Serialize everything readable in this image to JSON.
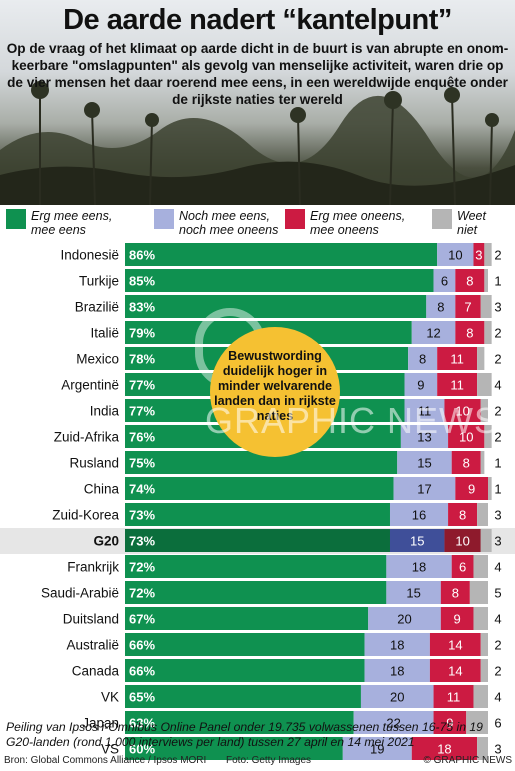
{
  "header": {
    "title": "De aarde nadert “kantelpunt”",
    "subtitle": "Op de vraag of het klimaat op aarde dicht in de buurt is van abrupte en onom-keerbare \"omslagpunten\" als gevolg van menselijke activiteit, waren drie op de vier mensen het daar roerend mee eens, in een wereldwijde enquête onder de rijkste naties ter wereld"
  },
  "colors": {
    "agree": "#0f9150",
    "agree_g20": "#0b6e3c",
    "neither": "#a7b0dd",
    "neither_g20": "#3f4f99",
    "disagree": "#cc1b42",
    "disagree_g20": "#8e1a2c",
    "dontknow": "#b5b5b5"
  },
  "legend": [
    {
      "label": "Erg mee eens,\nmee eens",
      "color": "#0f9150"
    },
    {
      "label": "Noch mee eens,\nnoch mee oneens",
      "color": "#a7b0dd"
    },
    {
      "label": "Erg mee oneens,\nmee oneens",
      "color": "#cc1b42"
    },
    {
      "label": "Weet\nniet",
      "color": "#b5b5b5"
    }
  ],
  "callout": {
    "text": "Bewustwording duidelijk hoger in minder welvarende landen dan in rijkste naties"
  },
  "watermark": "GRAPHIC NEWS",
  "chart_data": {
    "type": "bar",
    "stacked": true,
    "orientation": "horizontal",
    "categories": [
      "Indonesië",
      "Turkije",
      "Brazilië",
      "Italië",
      "Mexico",
      "Argentinë",
      "India",
      "Zuid-Afrika",
      "Rusland",
      "China",
      "Zuid-Korea",
      "G20",
      "Frankrijk",
      "Saudi-Arabië",
      "Duitsland",
      "Australië",
      "Canada",
      "VK",
      "Japan",
      "VS"
    ],
    "highlight": "G20",
    "series": [
      {
        "name": "Erg mee eens, mee eens",
        "values": [
          86,
          85,
          83,
          79,
          78,
          77,
          77,
          76,
          75,
          74,
          73,
          73,
          72,
          72,
          67,
          66,
          66,
          65,
          63,
          60
        ],
        "labels": [
          "86%",
          "85%",
          "83%",
          "79%",
          "78%",
          "77%",
          "77%",
          "76%",
          "75%",
          "74%",
          "73%",
          "73%",
          "72%",
          "72%",
          "67%",
          "66%",
          "66%",
          "65%",
          "63%",
          "60%"
        ]
      },
      {
        "name": "Noch mee eens, noch mee oneens",
        "values": [
          10,
          6,
          8,
          12,
          8,
          9,
          11,
          13,
          15,
          17,
          16,
          15,
          18,
          15,
          20,
          18,
          18,
          20,
          22,
          19
        ],
        "labels": [
          "10",
          "6",
          "8",
          "12",
          "8",
          "9",
          "11",
          "13",
          "15",
          "17",
          "16",
          "15",
          "18",
          "15",
          "20",
          "18",
          "18",
          "20",
          "22",
          "19"
        ]
      },
      {
        "name": "Erg mee oneens, mee oneens",
        "values": [
          3,
          8,
          7,
          8,
          11,
          11,
          10,
          10,
          8,
          9,
          8,
          10,
          6,
          8,
          9,
          14,
          14,
          11,
          9,
          18
        ],
        "labels": [
          "3",
          "8",
          "7",
          "8",
          "11",
          "11",
          "10",
          "10",
          "8",
          "9",
          "8",
          "10",
          "6",
          "8",
          "9",
          "14",
          "14",
          "11",
          "9",
          "18"
        ]
      },
      {
        "name": "Weet niet",
        "values": [
          2,
          1,
          3,
          2,
          2,
          4,
          2,
          2,
          1,
          1,
          3,
          3,
          4,
          5,
          4,
          2,
          2,
          4,
          6,
          3
        ],
        "labels": [
          "2",
          "1",
          "3",
          "2",
          "2",
          "4",
          "2",
          "2",
          "1",
          "1",
          "3",
          "3",
          "4",
          "5",
          "4",
          "2",
          "2",
          "4",
          "6",
          "3"
        ]
      }
    ],
    "xlim": [
      0,
      100
    ]
  },
  "note": "Peiling van Ipsos i-Omnibus Online Panel onder 19.735 volwassenen tussen 16-75 in 19 G20-landen (rond 1.000 interviews per land) tussen 27 april en 14 mei 2021",
  "footer": {
    "source": "Bron: Global Commons Alliance / Ipsos MORI",
    "photo": "Foto: Getty Images",
    "brand": "© GRAPHIC NEWS"
  }
}
